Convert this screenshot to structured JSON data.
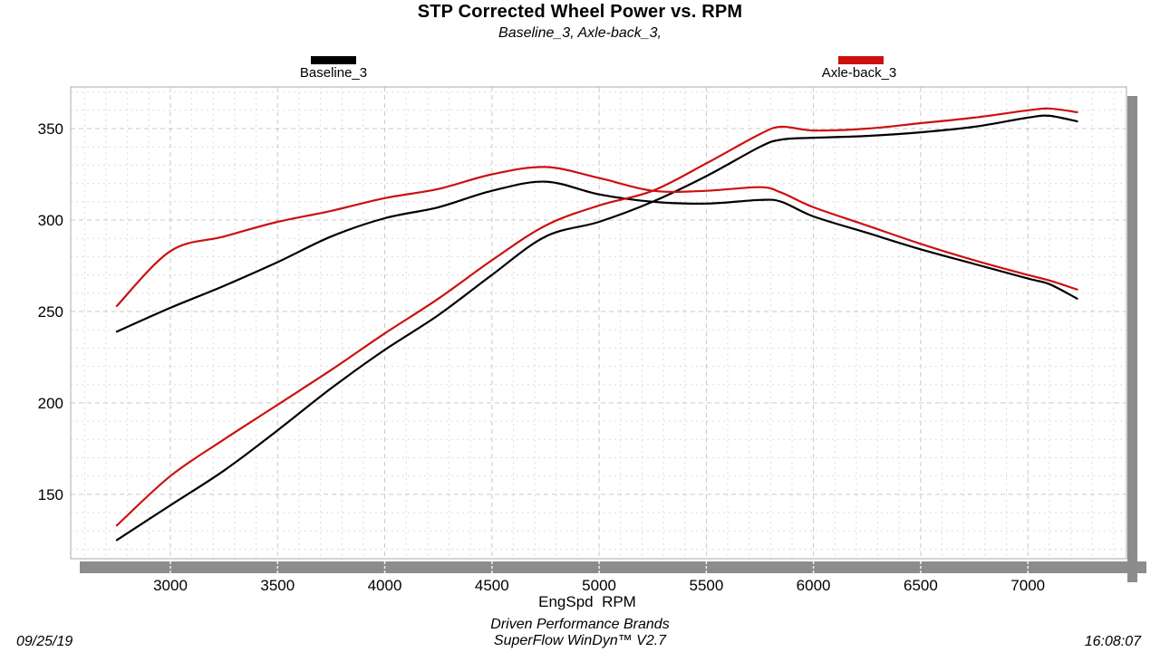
{
  "header": {
    "title": "STP Corrected Wheel Power vs. RPM",
    "subtitle": "Baseline_3, Axle-back_3,"
  },
  "legend": [
    {
      "label": "Baseline_3",
      "color": "#000000"
    },
    {
      "label": "Axle-back_3",
      "color": "#cc1010"
    }
  ],
  "axes": {
    "xlabel": "EngSpd  RPM"
  },
  "footer": {
    "brand": "Driven Performance Brands",
    "software": "SuperFlow WinDyn™ V2.7",
    "date": "09/25/19",
    "time": "16:08:07"
  },
  "chart_data": {
    "type": "line",
    "title": "STP Corrected Wheel Power vs. RPM",
    "subtitle": "Baseline_3, Axle-back_3,",
    "xlabel": "EngSpd  RPM",
    "ylabel": "",
    "x_ticks": [
      3000,
      3500,
      4000,
      4500,
      5000,
      5500,
      6000,
      6500,
      7000
    ],
    "y_ticks": [
      150,
      200,
      250,
      300,
      350
    ],
    "x_range": [
      2535,
      7460
    ],
    "y_range": [
      114.8,
      372.8
    ],
    "grid": {
      "major_x_step": 500,
      "major_y_step": 50,
      "minor_x_step": 100,
      "minor_y_step": 10
    },
    "legend_position": "top",
    "rpm": [
      2750,
      3000,
      3250,
      3500,
      3750,
      4000,
      4250,
      4500,
      4750,
      5000,
      5250,
      5500,
      5750,
      5850,
      6000,
      6250,
      6500,
      6750,
      7000,
      7100,
      7230
    ],
    "series": [
      {
        "run": "Baseline_3",
        "measure": "power",
        "color": "#000000",
        "values": [
          125,
          144,
          163,
          185,
          208,
          229,
          248,
          270,
          291,
          299,
          310,
          324,
          340,
          344,
          345,
          346,
          348,
          351,
          356,
          357,
          354
        ]
      },
      {
        "run": "Baseline_3",
        "measure": "torque",
        "color": "#000000",
        "values": [
          239,
          252,
          264,
          277,
          291,
          301,
          307,
          316,
          321,
          314,
          310,
          309,
          311,
          310,
          302,
          293,
          284,
          276,
          268,
          265,
          257
        ]
      },
      {
        "run": "Axle-back_3",
        "measure": "power",
        "color": "#cc1010",
        "values": [
          133,
          160,
          180,
          199,
          218,
          238,
          257,
          278,
          297,
          308,
          316,
          331,
          347,
          351,
          349,
          350,
          353,
          356,
          360,
          361,
          359
        ]
      },
      {
        "run": "Axle-back_3",
        "measure": "torque",
        "color": "#cc1010",
        "values": [
          253,
          283,
          291,
          299,
          305,
          312,
          317,
          325,
          329,
          323,
          316,
          316,
          318,
          315,
          307,
          297,
          287,
          278,
          270,
          267,
          262
        ]
      }
    ]
  }
}
